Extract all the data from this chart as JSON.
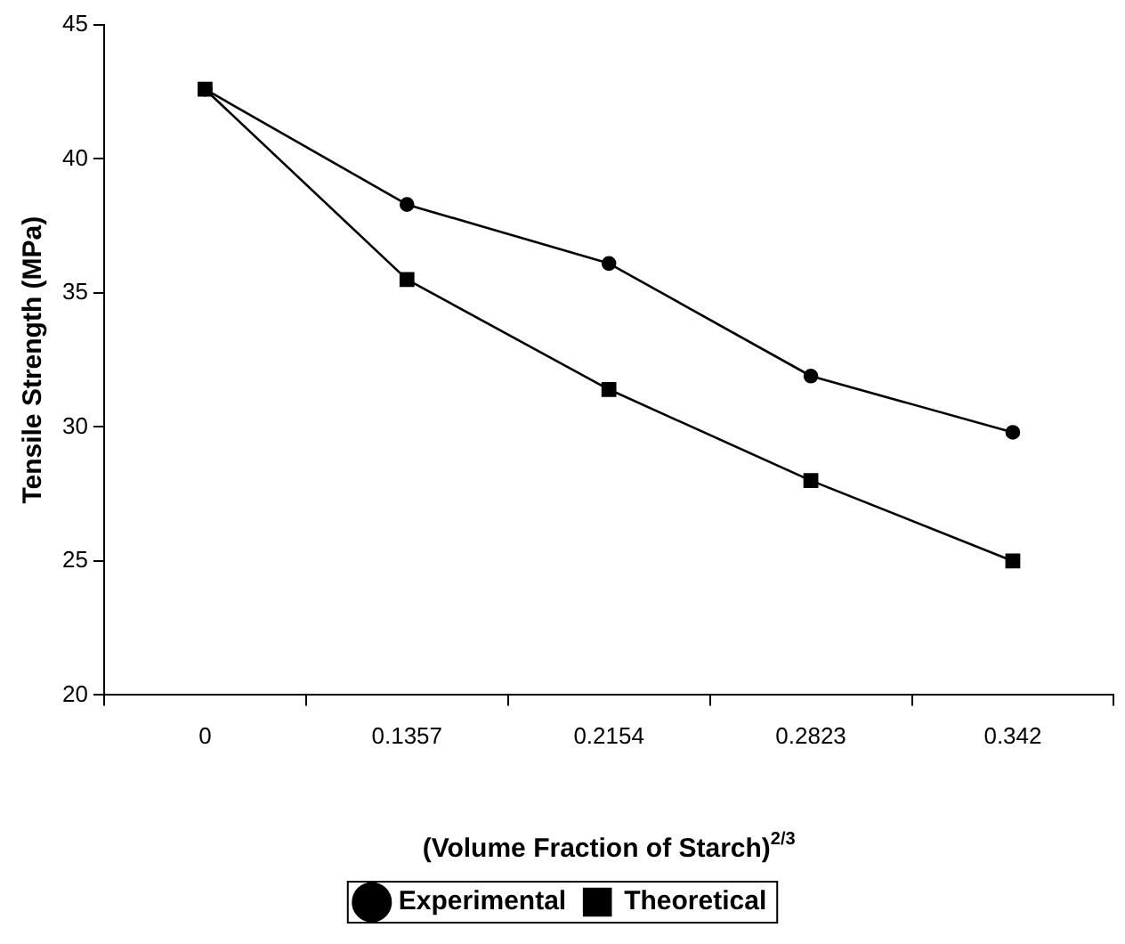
{
  "chart_data": {
    "type": "line",
    "xlabel": "(Volume Fraction of Starch)$^{2/3}$",
    "ylabel": "Tensile Strength (MPa)",
    "categories": [
      "0",
      "0.1357",
      "0.2154",
      "0.2823",
      "0.342"
    ],
    "series": [
      {
        "name": "Experimental",
        "color": "#000000",
        "marker": "circle",
        "values": [
          42.6,
          38.3,
          36.1,
          31.9,
          29.8
        ]
      },
      {
        "name": "Theoretical",
        "color": "#000000",
        "marker": "square",
        "values": [
          42.6,
          35.5,
          31.4,
          28.0,
          25.0
        ]
      }
    ],
    "ylim": [
      20,
      45
    ],
    "yticks": [
      20,
      25,
      30,
      35,
      40,
      45
    ],
    "grid": false,
    "legend": "bottom",
    "line_style": "solid"
  }
}
